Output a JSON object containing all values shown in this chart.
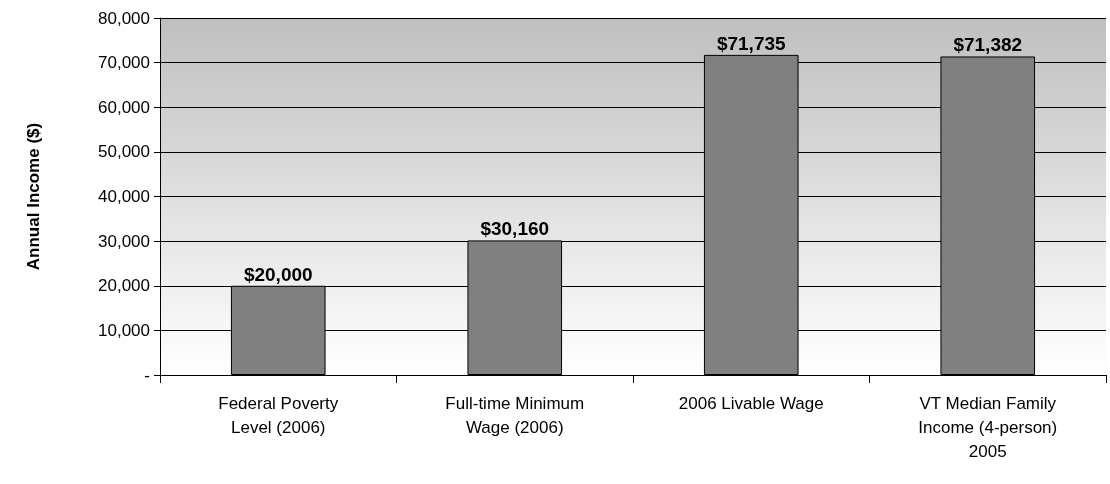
{
  "chart_data": {
    "type": "bar",
    "ylabel": "Annual Income ($)",
    "categories": [
      "Federal Poverty\nLevel (2006)",
      "Full-time Minimum\nWage (2006)",
      "2006 Livable Wage",
      "VT Median Family\nIncome (4-person)\n2005"
    ],
    "values": [
      20000,
      30160,
      71735,
      71382
    ],
    "value_labels": [
      "$20,000",
      "$30,160",
      "$71,735",
      "$71,382"
    ],
    "color": "#808080",
    "ylim": [
      0,
      80000
    ],
    "yticks": [
      {
        "value": 0,
        "label": "-"
      },
      {
        "value": 10000,
        "label": "10,000"
      },
      {
        "value": 20000,
        "label": "20,000"
      },
      {
        "value": 30000,
        "label": "30,000"
      },
      {
        "value": 40000,
        "label": "40,000"
      },
      {
        "value": 50000,
        "label": "50,000"
      },
      {
        "value": 60000,
        "label": "60,000"
      },
      {
        "value": 70000,
        "label": "70,000"
      },
      {
        "value": 80000,
        "label": "80,000"
      }
    ],
    "grid": "y"
  }
}
